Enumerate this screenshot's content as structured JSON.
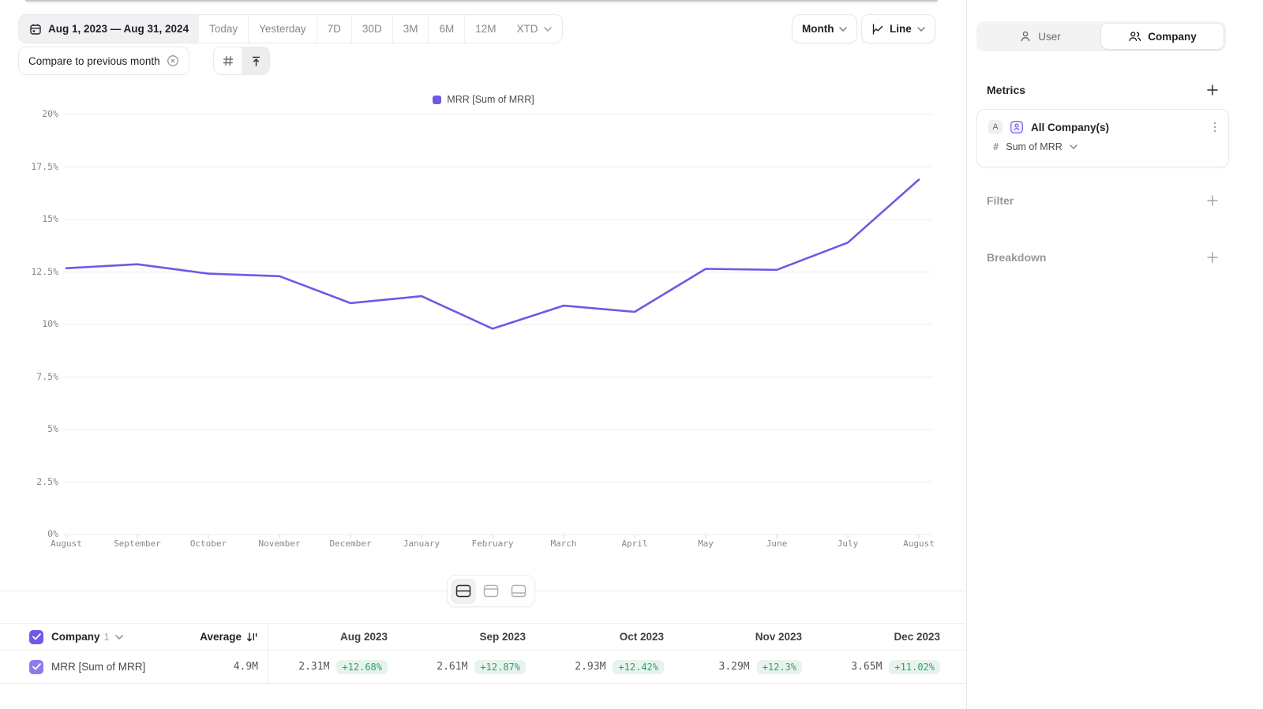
{
  "toolbar": {
    "date_range": "Aug 1, 2023 — Aug 31, 2024",
    "presets": [
      "Today",
      "Yesterday",
      "7D",
      "30D",
      "3M",
      "6M",
      "12M"
    ],
    "xtd_label": "XTD",
    "compare_chip": "Compare to previous month",
    "granularity": "Month",
    "chart_type": "Line"
  },
  "chart_data": {
    "type": "line",
    "title": "",
    "legend_position": "top-center",
    "grid": true,
    "x": [
      "August",
      "September",
      "October",
      "November",
      "December",
      "January",
      "February",
      "March",
      "April",
      "May",
      "June",
      "July",
      "August"
    ],
    "series": [
      {
        "name": "MRR [Sum of MRR]",
        "color": "#6d5ae6",
        "values": [
          12.68,
          12.87,
          12.42,
          12.3,
          11.02,
          11.35,
          9.8,
          10.9,
          10.6,
          12.65,
          12.6,
          13.9,
          16.9
        ]
      }
    ],
    "ylim": [
      0,
      20
    ],
    "y_ticks": [
      "0%",
      "2.5%",
      "5%",
      "7.5%",
      "10%",
      "12.5%",
      "15%",
      "17.5%",
      "20%"
    ],
    "xlabel": "",
    "ylabel": ""
  },
  "table": {
    "header": {
      "entity": "Company",
      "count": "1",
      "average_label": "Average",
      "columns": [
        "Aug 2023",
        "Sep 2023",
        "Oct 2023",
        "Nov 2023",
        "Dec 2023"
      ]
    },
    "rows": [
      {
        "label": "MRR [Sum of MRR]",
        "average": "4.9M",
        "cells": [
          {
            "value": "2.31M",
            "delta": "+12.68%"
          },
          {
            "value": "2.61M",
            "delta": "+12.87%"
          },
          {
            "value": "2.93M",
            "delta": "+12.42%"
          },
          {
            "value": "3.29M",
            "delta": "+12.3%"
          },
          {
            "value": "3.65M",
            "delta": "+11.02%"
          }
        ]
      }
    ]
  },
  "sidebar": {
    "tabs": [
      {
        "label": "User"
      },
      {
        "label": "Company"
      }
    ],
    "active_tab": "Company",
    "metrics_title": "Metrics",
    "metric_card": {
      "badge": "A",
      "name": "All Company(s)",
      "hash": "#",
      "metric": "Sum of MRR"
    },
    "filter_label": "Filter",
    "breakdown_label": "Breakdown"
  },
  "colors": {
    "accent_purple": "#6d5ae6",
    "row_checkbox_purple": "#8d7bee",
    "delta_green_text": "#2f9e6e",
    "delta_green_bg": "#e7f4ed",
    "gridline": "#ededf0"
  }
}
